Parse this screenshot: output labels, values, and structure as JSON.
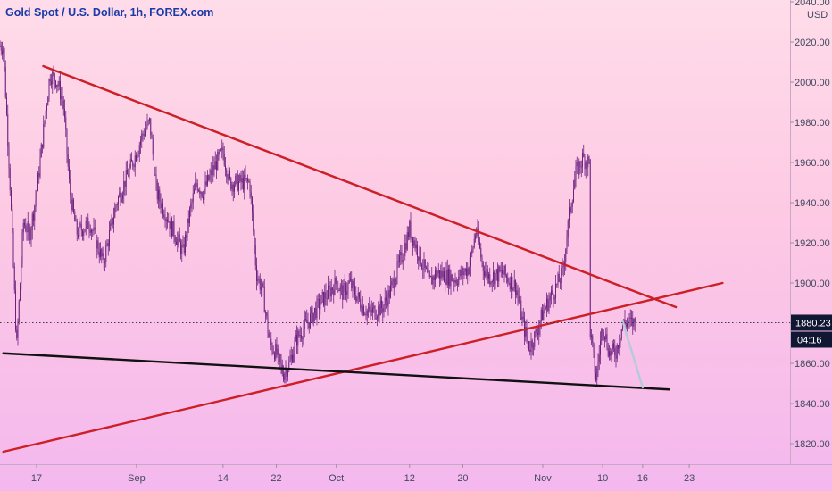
{
  "title": "Gold Spot / U.S. Dollar, 1h, FOREX.com",
  "currency": "USD",
  "last_price": "1880.23",
  "countdown": "04:16",
  "chart_data": {
    "type": "candlestick",
    "symbol": "XAUUSD",
    "y_ticks": [
      "1820.00",
      "1840.00",
      "1860.00",
      "1880.00",
      "1900.00",
      "1920.00",
      "1940.00",
      "1960.00",
      "1980.00",
      "2000.00",
      "2020.00",
      "2040.00"
    ],
    "ylim": [
      1812,
      2043
    ],
    "x_ticks": [
      "17",
      "Sep",
      "14",
      "22",
      "Oct",
      "12",
      "20",
      "Nov",
      "10",
      "16",
      "23"
    ],
    "price_path": [
      {
        "d": "Aug 12",
        "p": 2018
      },
      {
        "d": "Aug 13",
        "p": 1950
      },
      {
        "d": "Aug 14",
        "p": 1868
      },
      {
        "d": "Aug 15",
        "p": 1930
      },
      {
        "d": "Aug 16",
        "p": 1925
      },
      {
        "d": "Aug 17",
        "p": 1945
      },
      {
        "d": "Aug 18",
        "p": 1975
      },
      {
        "d": "Aug 19",
        "p": 2004
      },
      {
        "d": "Aug 20",
        "p": 2001
      },
      {
        "d": "Aug 21",
        "p": 1990
      },
      {
        "d": "Aug 22",
        "p": 1945
      },
      {
        "d": "Aug 23",
        "p": 1925
      },
      {
        "d": "Aug 25",
        "p": 1930
      },
      {
        "d": "Aug 27",
        "p": 1910
      },
      {
        "d": "Aug 29",
        "p": 1940
      },
      {
        "d": "Sep 1",
        "p": 1965
      },
      {
        "d": "Sep 2",
        "p": 1975
      },
      {
        "d": "Sep 3",
        "p": 1980
      },
      {
        "d": "Sep 4",
        "p": 1945
      },
      {
        "d": "Sep 6",
        "p": 1930
      },
      {
        "d": "Sep 8",
        "p": 1915
      },
      {
        "d": "Sep 9",
        "p": 1935
      },
      {
        "d": "Sep 10",
        "p": 1950
      },
      {
        "d": "Sep 11",
        "p": 1945
      },
      {
        "d": "Sep 13",
        "p": 1960
      },
      {
        "d": "Sep 14",
        "p": 1965
      },
      {
        "d": "Sep 15",
        "p": 1950
      },
      {
        "d": "Sep 17",
        "p": 1950
      },
      {
        "d": "Sep 18",
        "p": 1950
      },
      {
        "d": "Sep 19",
        "p": 1905
      },
      {
        "d": "Sep 20",
        "p": 1895
      },
      {
        "d": "Sep 21",
        "p": 1870
      },
      {
        "d": "Sep 22",
        "p": 1865
      },
      {
        "d": "Sep 23",
        "p": 1855
      },
      {
        "d": "Sep 24",
        "p": 1860
      },
      {
        "d": "Sep 25",
        "p": 1872
      },
      {
        "d": "Sep 27",
        "p": 1882
      },
      {
        "d": "Sep 29",
        "p": 1892
      },
      {
        "d": "Oct 1",
        "p": 1900
      },
      {
        "d": "Oct 2",
        "p": 1895
      },
      {
        "d": "Oct 3",
        "p": 1900
      },
      {
        "d": "Oct 5",
        "p": 1888
      },
      {
        "d": "Oct 6",
        "p": 1885
      },
      {
        "d": "Oct 8",
        "p": 1888
      },
      {
        "d": "Oct 9",
        "p": 1895
      },
      {
        "d": "Oct 11",
        "p": 1915
      },
      {
        "d": "Oct 12",
        "p": 1927
      },
      {
        "d": "Oct 13",
        "p": 1918
      },
      {
        "d": "Oct 15",
        "p": 1900
      },
      {
        "d": "Oct 16",
        "p": 1905
      },
      {
        "d": "Oct 18",
        "p": 1903
      },
      {
        "d": "Oct 19",
        "p": 1902
      },
      {
        "d": "Oct 21",
        "p": 1908
      },
      {
        "d": "Oct 22",
        "p": 1927
      },
      {
        "d": "Oct 23",
        "p": 1908
      },
      {
        "d": "Oct 24",
        "p": 1903
      },
      {
        "d": "Oct 26",
        "p": 1905
      },
      {
        "d": "Oct 28",
        "p": 1898
      },
      {
        "d": "Oct 29",
        "p": 1880
      },
      {
        "d": "Oct 30",
        "p": 1868
      },
      {
        "d": "Oct 31",
        "p": 1875
      },
      {
        "d": "Nov 1",
        "p": 1885
      },
      {
        "d": "Nov 2",
        "p": 1892
      },
      {
        "d": "Nov 3",
        "p": 1898
      },
      {
        "d": "Nov 4",
        "p": 1905
      },
      {
        "d": "Nov 5",
        "p": 1935
      },
      {
        "d": "Nov 6",
        "p": 1955
      },
      {
        "d": "Nov 7",
        "p": 1962
      },
      {
        "d": "Nov 8",
        "p": 1960
      },
      {
        "d": "Nov 8",
        "p": 1880
      },
      {
        "d": "Nov 9",
        "p": 1852
      },
      {
        "d": "Nov 10",
        "p": 1880
      },
      {
        "d": "Nov 11",
        "p": 1865
      },
      {
        "d": "Nov 12",
        "p": 1866
      },
      {
        "d": "Nov 13",
        "p": 1880
      }
    ],
    "trendlines": [
      {
        "name": "descending resistance",
        "color": "#cc1f26",
        "from": {
          "d": "Aug 18",
          "p": 2008
        },
        "to": {
          "d": "Nov 21",
          "p": 1888
        }
      },
      {
        "name": "ascending support",
        "color": "#cc1f26",
        "from": {
          "d": "Aug 12",
          "p": 1816
        },
        "to": {
          "d": "Nov 28",
          "p": 1900
        }
      },
      {
        "name": "horizontal support",
        "color": "#111111",
        "from": {
          "d": "Aug 12",
          "p": 1865
        },
        "to": {
          "d": "Nov 20",
          "p": 1847
        }
      }
    ],
    "projection": {
      "color": "#b6cadc",
      "from": {
        "d": "Nov 13",
        "p": 1881
      },
      "to": {
        "d": "Nov 16",
        "p": 1848
      }
    },
    "price_line": {
      "value": 1880.23,
      "style": "dotted"
    },
    "grid": false,
    "colors": {
      "candles": "#6e2280",
      "axis_text": "#434a60",
      "price_badge": "#0f1733",
      "time_badge": "#0f1733",
      "badge_text": "#ffffff"
    }
  }
}
